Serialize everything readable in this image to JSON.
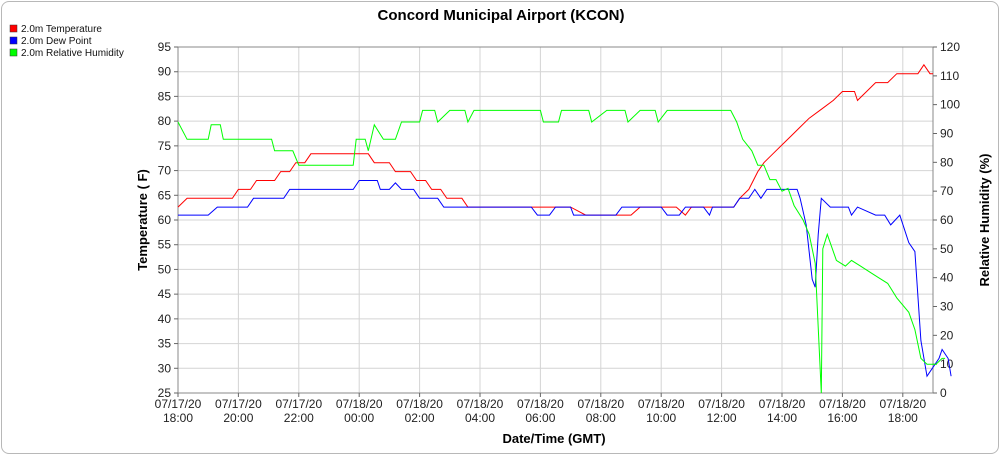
{
  "chart_data": {
    "type": "line",
    "title": "Concord Municipal Airport (KCON)",
    "xlabel": "Date/Time (GMT)",
    "ylabel": "Temperature ( F)",
    "y2label": "Relative Humidity (%)",
    "legend_placement": "top-left",
    "grid": true,
    "xlim": [
      0,
      25
    ],
    "ylim": [
      25,
      95
    ],
    "y2lim": [
      0,
      120
    ],
    "x_ticks": [
      {
        "x": 0,
        "date": "07/17/20",
        "time": "18:00"
      },
      {
        "x": 2,
        "date": "07/17/20",
        "time": "20:00"
      },
      {
        "x": 4,
        "date": "07/17/20",
        "time": "22:00"
      },
      {
        "x": 6,
        "date": "07/18/20",
        "time": "00:00"
      },
      {
        "x": 8,
        "date": "07/18/20",
        "time": "02:00"
      },
      {
        "x": 10,
        "date": "07/18/20",
        "time": "04:00"
      },
      {
        "x": 12,
        "date": "07/18/20",
        "time": "06:00"
      },
      {
        "x": 14,
        "date": "07/18/20",
        "time": "08:00"
      },
      {
        "x": 16,
        "date": "07/18/20",
        "time": "10:00"
      },
      {
        "x": 18,
        "date": "07/18/20",
        "time": "12:00"
      },
      {
        "x": 20,
        "date": "07/18/20",
        "time": "14:00"
      },
      {
        "x": 22,
        "date": "07/18/20",
        "time": "16:00"
      },
      {
        "x": 24,
        "date": "07/18/20",
        "time": "18:00"
      }
    ],
    "y_ticks": [
      25,
      30,
      35,
      40,
      45,
      50,
      55,
      60,
      65,
      70,
      75,
      80,
      85,
      90,
      95
    ],
    "y2_ticks": [
      0,
      10,
      20,
      30,
      40,
      50,
      60,
      70,
      80,
      90,
      100,
      110,
      120
    ],
    "series": [
      {
        "name": "2.0m Temperature",
        "color": "#ff0000",
        "axis": "left",
        "points": [
          [
            0,
            62.6
          ],
          [
            0.3,
            64.4
          ],
          [
            1,
            64.4
          ],
          [
            1.8,
            64.4
          ],
          [
            2,
            66.2
          ],
          [
            2.4,
            66.2
          ],
          [
            2.6,
            68
          ],
          [
            3.2,
            68
          ],
          [
            3.4,
            69.8
          ],
          [
            3.7,
            69.8
          ],
          [
            3.9,
            71.6
          ],
          [
            4.2,
            71.6
          ],
          [
            4.4,
            73.4
          ],
          [
            5.5,
            73.4
          ],
          [
            6,
            73.4
          ],
          [
            6.3,
            73.4
          ],
          [
            6.5,
            71.6
          ],
          [
            7,
            71.6
          ],
          [
            7.2,
            69.8
          ],
          [
            7.7,
            69.8
          ],
          [
            7.9,
            68
          ],
          [
            8.2,
            68
          ],
          [
            8.4,
            66.2
          ],
          [
            8.7,
            66.2
          ],
          [
            8.9,
            64.4
          ],
          [
            9.4,
            64.4
          ],
          [
            9.6,
            62.6
          ],
          [
            12,
            62.6
          ],
          [
            13,
            62.6
          ],
          [
            13.5,
            61
          ],
          [
            15,
            61
          ],
          [
            15.3,
            62.6
          ],
          [
            16.5,
            62.6
          ],
          [
            16.8,
            61
          ],
          [
            17,
            62.6
          ],
          [
            18,
            62.6
          ],
          [
            18.4,
            62.6
          ],
          [
            18.6,
            64.4
          ],
          [
            18.9,
            66.2
          ],
          [
            19.2,
            69.8
          ],
          [
            19.4,
            71.6
          ],
          [
            19.7,
            73.4
          ],
          [
            20,
            75.2
          ],
          [
            20.3,
            77
          ],
          [
            20.6,
            78.8
          ],
          [
            20.9,
            80.6
          ],
          [
            21.3,
            82.4
          ],
          [
            21.7,
            84.2
          ],
          [
            22,
            86
          ],
          [
            22.4,
            86
          ],
          [
            22.5,
            84.2
          ],
          [
            22.8,
            86
          ],
          [
            23.1,
            87.8
          ],
          [
            23.5,
            87.8
          ],
          [
            23.8,
            89.6
          ],
          [
            24.5,
            89.6
          ],
          [
            24.7,
            91.4
          ],
          [
            24.9,
            89.6
          ],
          [
            25,
            89.6
          ]
        ]
      },
      {
        "name": "2.0m Dew Point",
        "color": "#0000ff",
        "axis": "left",
        "points": [
          [
            0,
            61
          ],
          [
            1,
            61
          ],
          [
            1.3,
            62.6
          ],
          [
            2.3,
            62.6
          ],
          [
            2.5,
            64.4
          ],
          [
            3.5,
            64.4
          ],
          [
            3.7,
            66.2
          ],
          [
            5.8,
            66.2
          ],
          [
            6,
            68
          ],
          [
            6.6,
            68
          ],
          [
            6.7,
            66.2
          ],
          [
            7,
            66.2
          ],
          [
            7.2,
            67.5
          ],
          [
            7.4,
            66.2
          ],
          [
            7.8,
            66.2
          ],
          [
            8,
            64.4
          ],
          [
            8.6,
            64.4
          ],
          [
            8.8,
            62.6
          ],
          [
            10.9,
            62.6
          ],
          [
            11.1,
            62.6
          ],
          [
            11.7,
            62.6
          ],
          [
            11.9,
            61
          ],
          [
            12.3,
            61
          ],
          [
            12.5,
            62.6
          ],
          [
            13,
            62.6
          ],
          [
            13.1,
            61
          ],
          [
            14.5,
            61
          ],
          [
            14.7,
            62.6
          ],
          [
            16,
            62.6
          ],
          [
            16.2,
            61
          ],
          [
            16.6,
            61
          ],
          [
            16.8,
            62.6
          ],
          [
            17.4,
            62.6
          ],
          [
            17.6,
            61
          ],
          [
            17.7,
            62.6
          ],
          [
            18.4,
            62.6
          ],
          [
            18.6,
            64.4
          ],
          [
            18.9,
            64.4
          ],
          [
            19.1,
            66.2
          ],
          [
            19.3,
            64.4
          ],
          [
            19.5,
            66.2
          ],
          [
            20.5,
            66.2
          ],
          [
            20.6,
            64.4
          ],
          [
            20.8,
            59
          ],
          [
            21,
            48
          ],
          [
            21.1,
            46.4
          ],
          [
            21.2,
            57
          ],
          [
            21.3,
            64.4
          ],
          [
            21.6,
            62.6
          ],
          [
            22.2,
            62.6
          ],
          [
            22.3,
            61
          ],
          [
            22.5,
            62.6
          ],
          [
            23.1,
            61
          ],
          [
            23.4,
            61
          ],
          [
            23.6,
            59
          ],
          [
            23.9,
            61
          ],
          [
            24.2,
            55.4
          ],
          [
            24.4,
            53.6
          ],
          [
            24.6,
            35.6
          ],
          [
            24.8,
            28.4
          ],
          [
            25.2,
            32
          ],
          [
            25.3,
            33.8
          ],
          [
            25.5,
            32
          ],
          [
            25.6,
            28.4
          ]
        ]
      },
      {
        "name": "2.0m Relative Humidity",
        "color": "#00ff00",
        "axis": "right",
        "points": [
          [
            0,
            94
          ],
          [
            0.3,
            88
          ],
          [
            1,
            88
          ],
          [
            1.1,
            93
          ],
          [
            1.4,
            93
          ],
          [
            1.5,
            88
          ],
          [
            3.1,
            88
          ],
          [
            3.2,
            84
          ],
          [
            3.4,
            84
          ],
          [
            3.8,
            84
          ],
          [
            4,
            79
          ],
          [
            5.5,
            79
          ],
          [
            5.8,
            79
          ],
          [
            5.9,
            88
          ],
          [
            6.2,
            88
          ],
          [
            6.3,
            84
          ],
          [
            6.5,
            93
          ],
          [
            6.8,
            88
          ],
          [
            7.2,
            88
          ],
          [
            7.4,
            94
          ],
          [
            8,
            94
          ],
          [
            8.1,
            98
          ],
          [
            8.5,
            98
          ],
          [
            8.6,
            94
          ],
          [
            9,
            98
          ],
          [
            9.5,
            98
          ],
          [
            9.6,
            94
          ],
          [
            9.8,
            98
          ],
          [
            12,
            98
          ],
          [
            12.1,
            94
          ],
          [
            12.6,
            94
          ],
          [
            12.7,
            98
          ],
          [
            13.6,
            98
          ],
          [
            13.7,
            94
          ],
          [
            14.2,
            98
          ],
          [
            14.8,
            98
          ],
          [
            14.9,
            94
          ],
          [
            15.3,
            98
          ],
          [
            15.8,
            98
          ],
          [
            15.9,
            94
          ],
          [
            16.2,
            98
          ],
          [
            18.1,
            98
          ],
          [
            18.3,
            98
          ],
          [
            18.5,
            94
          ],
          [
            18.7,
            88
          ],
          [
            19,
            84
          ],
          [
            19.2,
            79
          ],
          [
            19.4,
            79
          ],
          [
            19.6,
            74
          ],
          [
            19.8,
            74
          ],
          [
            20,
            70
          ],
          [
            20.2,
            71
          ],
          [
            20.4,
            65
          ],
          [
            20.7,
            60
          ],
          [
            20.9,
            55
          ],
          [
            21.1,
            45
          ],
          [
            21.3,
            0
          ],
          [
            21.35,
            50
          ],
          [
            21.5,
            55
          ],
          [
            21.8,
            46
          ],
          [
            22.1,
            44
          ],
          [
            22.3,
            46
          ],
          [
            22.6,
            44
          ],
          [
            22.9,
            42
          ],
          [
            23.2,
            40
          ],
          [
            23.5,
            38
          ],
          [
            23.8,
            33
          ],
          [
            24.2,
            28
          ],
          [
            24.4,
            22
          ],
          [
            24.6,
            12
          ],
          [
            24.8,
            10
          ],
          [
            25.1,
            10
          ],
          [
            25.3,
            12
          ],
          [
            25.4,
            12
          ]
        ]
      }
    ]
  }
}
